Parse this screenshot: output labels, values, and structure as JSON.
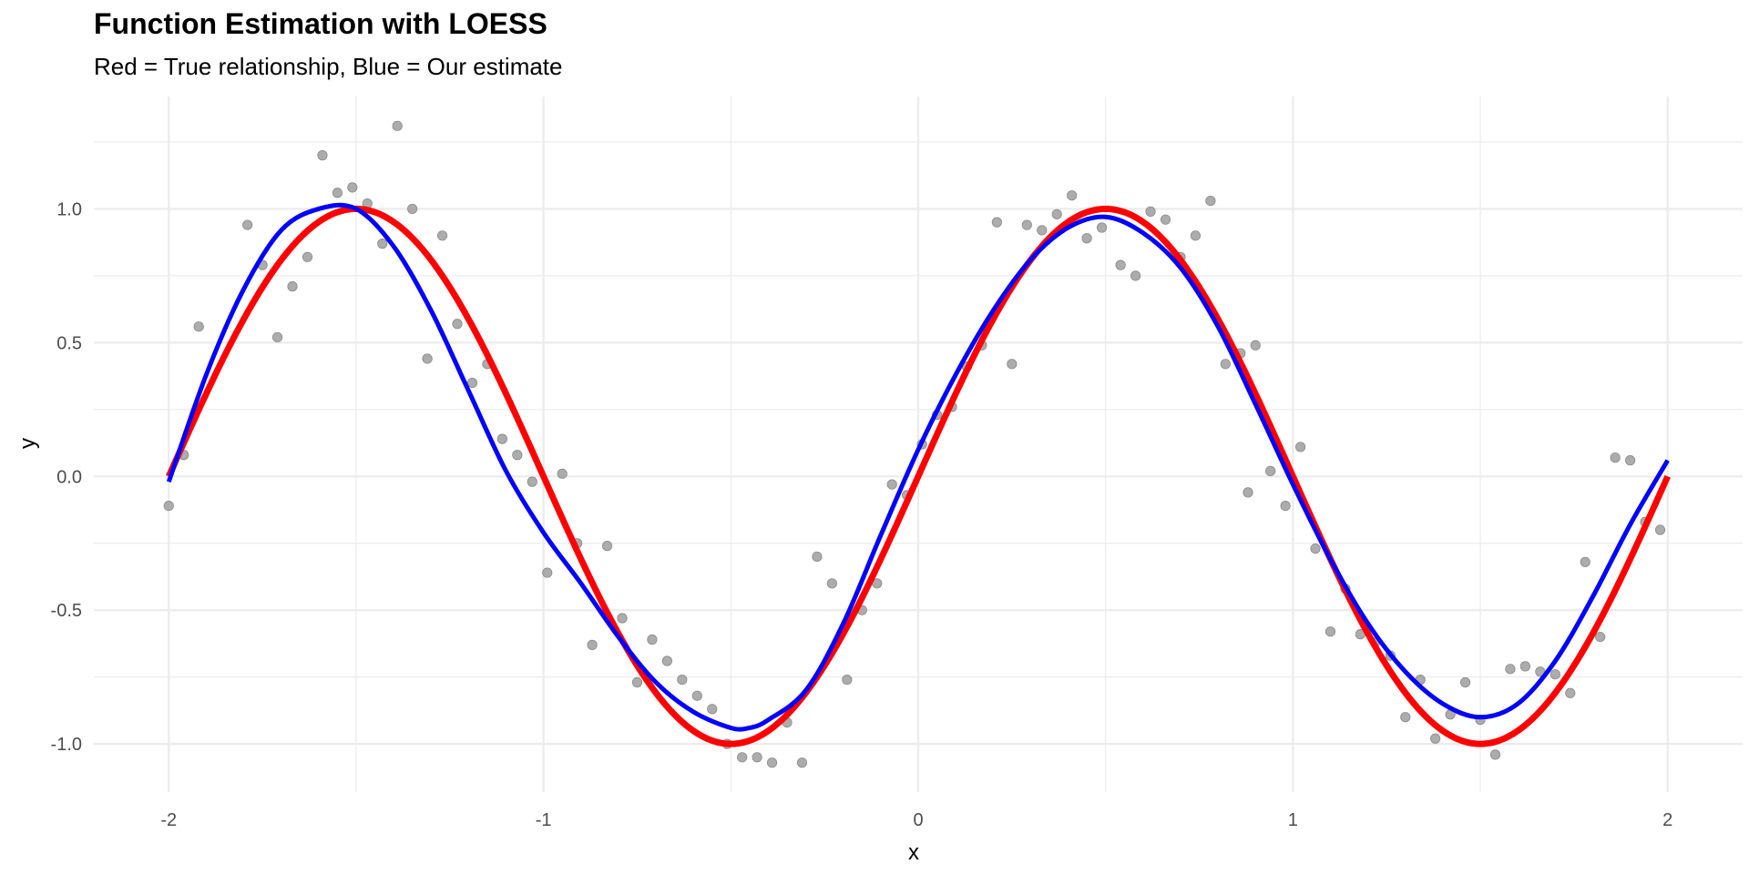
{
  "chart_data": {
    "type": "scatter",
    "title": "Function Estimation with LOESS",
    "subtitle": "Red = True relationship, Blue = Our estimate",
    "xlabel": "x",
    "ylabel": "y",
    "xlim": [
      -2.2,
      2.2
    ],
    "ylim": [
      -1.18,
      1.42
    ],
    "grid": true,
    "x_ticks": [
      -2,
      -1,
      0,
      1,
      2
    ],
    "x_tick_labels": [
      "-2",
      "-1",
      "0",
      "1",
      "2"
    ],
    "y_ticks": [
      -1.0,
      -0.5,
      0.0,
      0.5,
      1.0
    ],
    "y_tick_labels": [
      "-1.0",
      "-0.5",
      "0.0",
      "0.5",
      "1.0"
    ],
    "colors": {
      "points": "#9e9e9e",
      "true_line": "#ff0000",
      "estimate_line": "#0000ff",
      "grid": "#ebebeb"
    },
    "points": [
      [
        -2.0,
        -0.11
      ],
      [
        -1.96,
        0.08
      ],
      [
        -1.92,
        0.56
      ],
      [
        -1.79,
        0.94
      ],
      [
        -1.75,
        0.79
      ],
      [
        -1.71,
        0.52
      ],
      [
        -1.67,
        0.71
      ],
      [
        -1.63,
        0.82
      ],
      [
        -1.59,
        1.2
      ],
      [
        -1.55,
        1.06
      ],
      [
        -1.51,
        1.08
      ],
      [
        -1.47,
        1.02
      ],
      [
        -1.43,
        0.87
      ],
      [
        -1.39,
        1.31
      ],
      [
        -1.35,
        1.0
      ],
      [
        -1.31,
        0.44
      ],
      [
        -1.27,
        0.9
      ],
      [
        -1.23,
        0.57
      ],
      [
        -1.19,
        0.35
      ],
      [
        -1.15,
        0.42
      ],
      [
        -1.11,
        0.14
      ],
      [
        -1.07,
        0.08
      ],
      [
        -1.03,
        -0.02
      ],
      [
        -0.99,
        -0.36
      ],
      [
        -0.95,
        0.01
      ],
      [
        -0.91,
        -0.25
      ],
      [
        -0.87,
        -0.63
      ],
      [
        -0.83,
        -0.26
      ],
      [
        -0.79,
        -0.53
      ],
      [
        -0.75,
        -0.77
      ],
      [
        -0.71,
        -0.61
      ],
      [
        -0.67,
        -0.69
      ],
      [
        -0.63,
        -0.76
      ],
      [
        -0.59,
        -0.82
      ],
      [
        -0.55,
        -0.87
      ],
      [
        -0.51,
        -1.0
      ],
      [
        -0.47,
        -1.05
      ],
      [
        -0.43,
        -1.05
      ],
      [
        -0.39,
        -1.07
      ],
      [
        -0.35,
        -0.92
      ],
      [
        -0.31,
        -1.07
      ],
      [
        -0.27,
        -0.3
      ],
      [
        -0.23,
        -0.4
      ],
      [
        -0.19,
        -0.76
      ],
      [
        -0.15,
        -0.5
      ],
      [
        -0.11,
        -0.4
      ],
      [
        -0.07,
        -0.03
      ],
      [
        -0.03,
        -0.07
      ],
      [
        0.01,
        0.12
      ],
      [
        0.05,
        0.23
      ],
      [
        0.09,
        0.26
      ],
      [
        0.13,
        0.41
      ],
      [
        0.17,
        0.49
      ],
      [
        0.21,
        0.95
      ],
      [
        0.25,
        0.42
      ],
      [
        0.29,
        0.94
      ],
      [
        0.33,
        0.92
      ],
      [
        0.37,
        0.98
      ],
      [
        0.41,
        1.05
      ],
      [
        0.45,
        0.89
      ],
      [
        0.49,
        0.93
      ],
      [
        0.54,
        0.79
      ],
      [
        0.58,
        0.75
      ],
      [
        0.62,
        0.99
      ],
      [
        0.66,
        0.96
      ],
      [
        0.7,
        0.82
      ],
      [
        0.74,
        0.9
      ],
      [
        0.78,
        1.03
      ],
      [
        0.82,
        0.42
      ],
      [
        0.86,
        0.46
      ],
      [
        0.88,
        -0.06
      ],
      [
        0.9,
        0.49
      ],
      [
        0.94,
        0.02
      ],
      [
        0.98,
        -0.11
      ],
      [
        1.02,
        0.11
      ],
      [
        1.06,
        -0.27
      ],
      [
        1.1,
        -0.58
      ],
      [
        1.14,
        -0.42
      ],
      [
        1.18,
        -0.59
      ],
      [
        1.22,
        -0.62
      ],
      [
        1.26,
        -0.67
      ],
      [
        1.3,
        -0.9
      ],
      [
        1.34,
        -0.76
      ],
      [
        1.38,
        -0.98
      ],
      [
        1.42,
        -0.89
      ],
      [
        1.46,
        -0.77
      ],
      [
        1.5,
        -0.91
      ],
      [
        1.54,
        -1.04
      ],
      [
        1.58,
        -0.72
      ],
      [
        1.62,
        -0.71
      ],
      [
        1.66,
        -0.73
      ],
      [
        1.7,
        -0.74
      ],
      [
        1.74,
        -0.81
      ],
      [
        1.78,
        -0.32
      ],
      [
        1.82,
        -0.6
      ],
      [
        1.86,
        0.07
      ],
      [
        1.9,
        0.06
      ],
      [
        1.94,
        -0.17
      ],
      [
        1.98,
        -0.2
      ]
    ],
    "estimate_curve": [
      [
        -2.0,
        -0.02
      ],
      [
        -1.9,
        0.38
      ],
      [
        -1.8,
        0.7
      ],
      [
        -1.7,
        0.92
      ],
      [
        -1.6,
        1.0
      ],
      [
        -1.5,
        1.0
      ],
      [
        -1.4,
        0.86
      ],
      [
        -1.3,
        0.62
      ],
      [
        -1.2,
        0.32
      ],
      [
        -1.1,
        0.02
      ],
      [
        -1.0,
        -0.21
      ],
      [
        -0.9,
        -0.4
      ],
      [
        -0.8,
        -0.6
      ],
      [
        -0.7,
        -0.77
      ],
      [
        -0.6,
        -0.88
      ],
      [
        -0.5,
        -0.94
      ],
      [
        -0.45,
        -0.94
      ],
      [
        -0.4,
        -0.91
      ],
      [
        -0.3,
        -0.8
      ],
      [
        -0.2,
        -0.55
      ],
      [
        -0.1,
        -0.22
      ],
      [
        0.0,
        0.1
      ],
      [
        0.1,
        0.38
      ],
      [
        0.2,
        0.62
      ],
      [
        0.3,
        0.81
      ],
      [
        0.4,
        0.93
      ],
      [
        0.5,
        0.97
      ],
      [
        0.6,
        0.91
      ],
      [
        0.7,
        0.78
      ],
      [
        0.8,
        0.56
      ],
      [
        0.9,
        0.27
      ],
      [
        1.0,
        -0.03
      ],
      [
        1.1,
        -0.31
      ],
      [
        1.2,
        -0.55
      ],
      [
        1.3,
        -0.73
      ],
      [
        1.4,
        -0.85
      ],
      [
        1.5,
        -0.9
      ],
      [
        1.6,
        -0.85
      ],
      [
        1.7,
        -0.69
      ],
      [
        1.8,
        -0.45
      ],
      [
        1.9,
        -0.18
      ],
      [
        2.0,
        0.06
      ]
    ]
  }
}
